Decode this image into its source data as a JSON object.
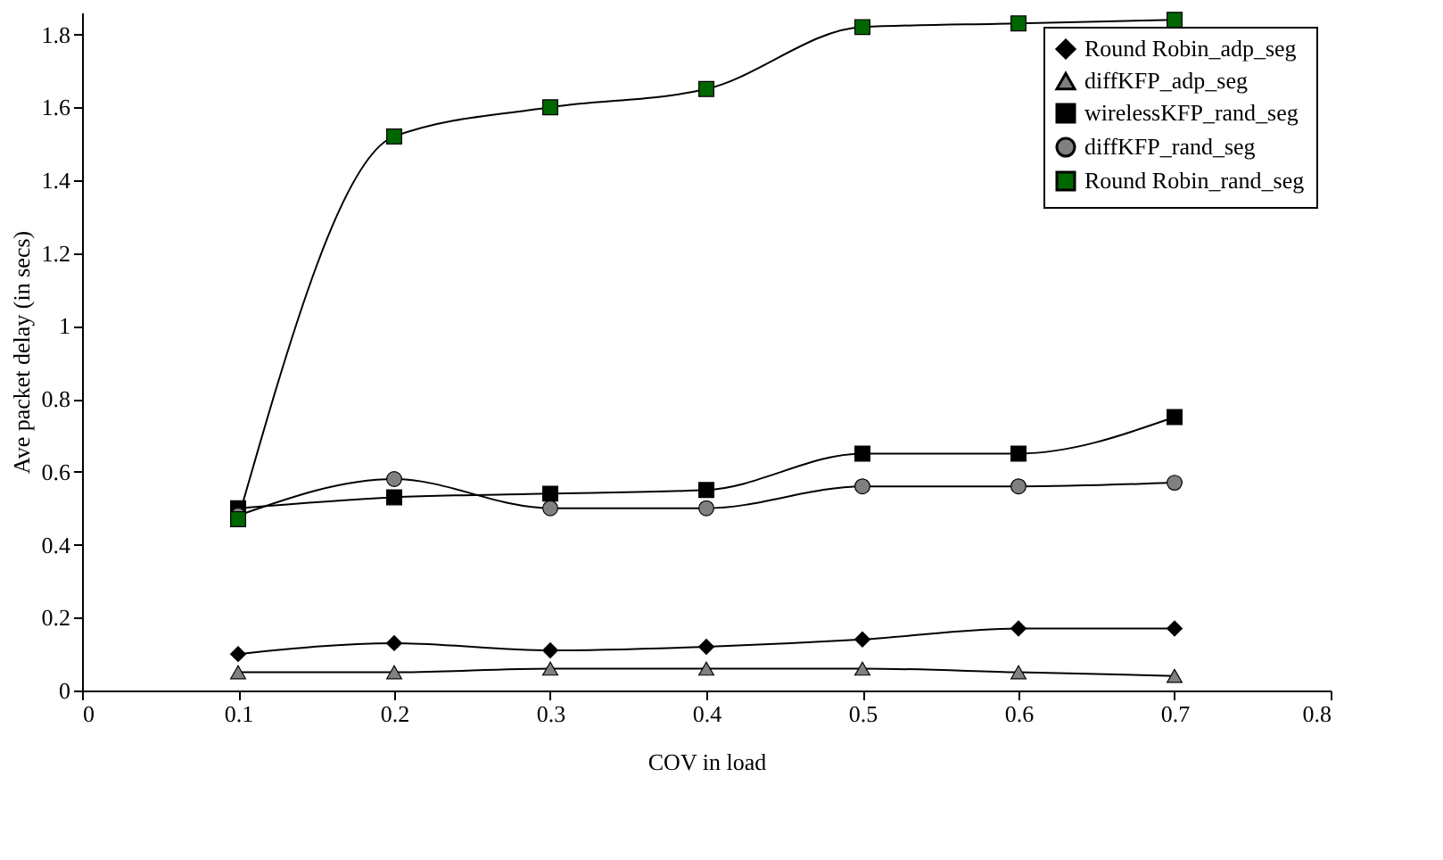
{
  "chart_data": {
    "type": "line",
    "xlabel": "COV in load",
    "ylabel": "Ave packet delay (in secs)",
    "x": [
      0.1,
      0.2,
      0.3,
      0.4,
      0.5,
      0.6,
      0.7
    ],
    "series": [
      {
        "name": "Round Robin_adp_seg",
        "color": "#000000",
        "marker": "diamond",
        "values": [
          0.1,
          0.13,
          0.11,
          0.12,
          0.14,
          0.17,
          0.17
        ]
      },
      {
        "name": "diffKFP_adp_seg",
        "color": "#808080",
        "marker": "triangle",
        "values": [
          0.05,
          0.05,
          0.06,
          0.06,
          0.06,
          0.05,
          0.04
        ]
      },
      {
        "name": "wirelessKFP_rand_seg",
        "color": "#000000",
        "marker": "square",
        "values": [
          0.5,
          0.53,
          0.54,
          0.55,
          0.65,
          0.65,
          0.75
        ]
      },
      {
        "name": "diffKFP_rand_seg",
        "color": "#808080",
        "marker": "circle",
        "values": [
          0.48,
          0.58,
          0.5,
          0.5,
          0.56,
          0.56,
          0.57
        ]
      },
      {
        "name": "Round Robin_rand_seg",
        "color": "#006600",
        "marker": "square",
        "values": [
          0.47,
          1.52,
          1.6,
          1.65,
          1.82,
          1.83,
          1.84
        ]
      }
    ],
    "xlim": [
      0,
      0.8
    ],
    "xticks": [
      0,
      0.1,
      0.2,
      0.3,
      0.4,
      0.5,
      0.6,
      0.7,
      0.8
    ],
    "ylim": [
      0,
      1.86
    ],
    "yticks": [
      0,
      0.2,
      0.4,
      0.6,
      0.8,
      1,
      1.2,
      1.4,
      1.6,
      1.8
    ],
    "grid": false,
    "legend": "top right",
    "line_style": "solid"
  }
}
